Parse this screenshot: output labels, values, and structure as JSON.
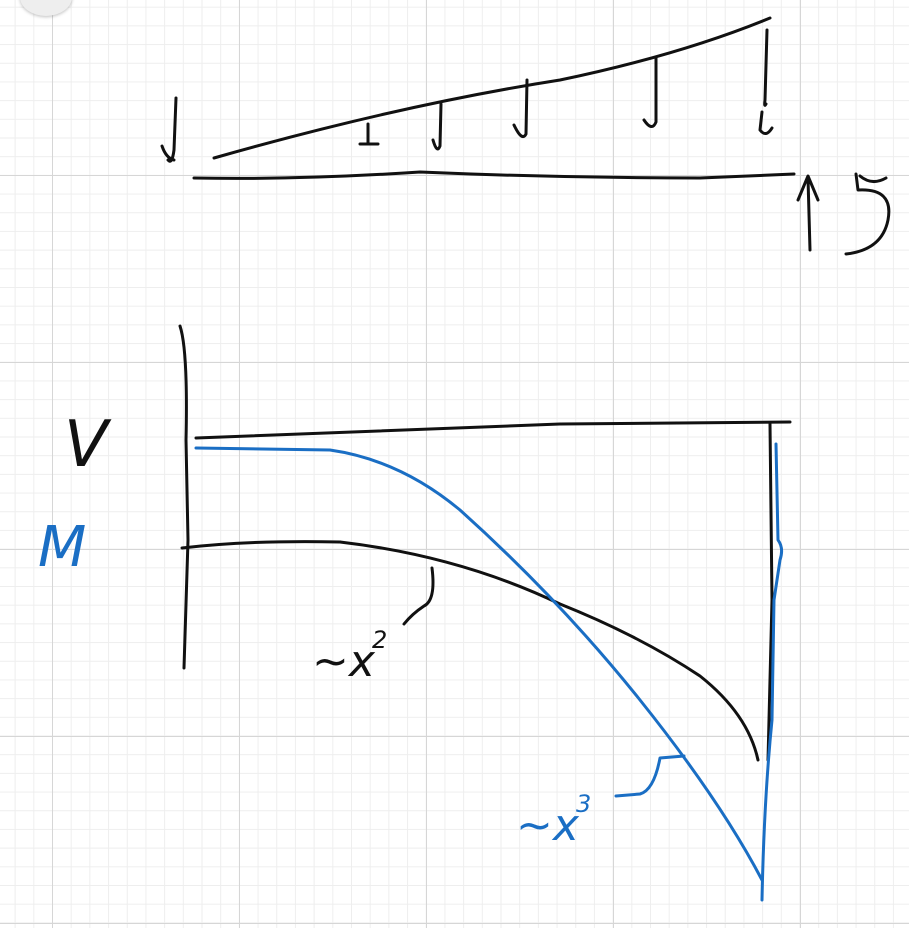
{
  "diagram": {
    "colors": {
      "ink": "#111111",
      "moment_ink": "#1a6ec4",
      "grid_major": "#d6d6d6",
      "grid_minor": "#eeeeee",
      "background": "#ffffff"
    },
    "labels": {
      "shear": "V",
      "moment": "M",
      "shear_trend": "~x",
      "shear_trend_exp": "2",
      "moment_trend": "~x",
      "moment_trend_exp": "3"
    },
    "icons": [
      "corner-button"
    ]
  }
}
